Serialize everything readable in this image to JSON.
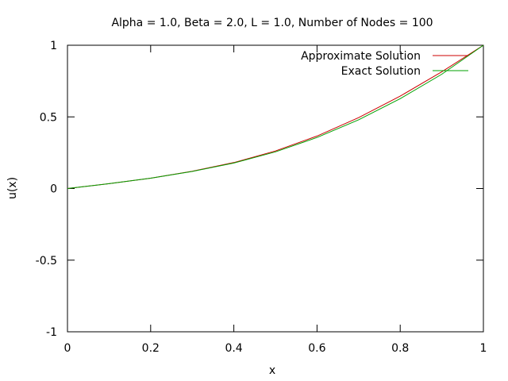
{
  "chart_data": {
    "type": "line",
    "title": "Alpha = 1.0, Beta = 2.0, L = 1.0, Number of Nodes = 100",
    "xlabel": "x",
    "ylabel": "u(x)",
    "xlim": [
      0,
      1
    ],
    "ylim": [
      -1,
      1
    ],
    "xticks": [
      "0",
      "0.2",
      "0.4",
      "0.6",
      "0.8",
      "1"
    ],
    "xtick_values": [
      0,
      0.2,
      0.4,
      0.6,
      0.8,
      1
    ],
    "yticks": [
      "-1",
      "-0.5",
      "0",
      "0.5",
      "1"
    ],
    "ytick_values": [
      -1,
      -0.5,
      0,
      0.5,
      1
    ],
    "grid": false,
    "legend_position": "top-right",
    "series": [
      {
        "name": "Approximate Solution",
        "color": "#cc0000",
        "x": [
          0,
          0.1,
          0.2,
          0.3,
          0.4,
          0.5,
          0.6,
          0.7,
          0.8,
          0.9,
          1.0
        ],
        "y": [
          0,
          0.034,
          0.072,
          0.121,
          0.181,
          0.262,
          0.366,
          0.495,
          0.645,
          0.815,
          1.0
        ]
      },
      {
        "name": "Exact Solution",
        "color": "#00a000",
        "x": [
          0,
          0.1,
          0.2,
          0.3,
          0.4,
          0.5,
          0.6,
          0.7,
          0.8,
          0.9,
          1.0
        ],
        "y": [
          0,
          0.034,
          0.072,
          0.119,
          0.178,
          0.256,
          0.356,
          0.48,
          0.627,
          0.798,
          1.0
        ]
      }
    ]
  }
}
